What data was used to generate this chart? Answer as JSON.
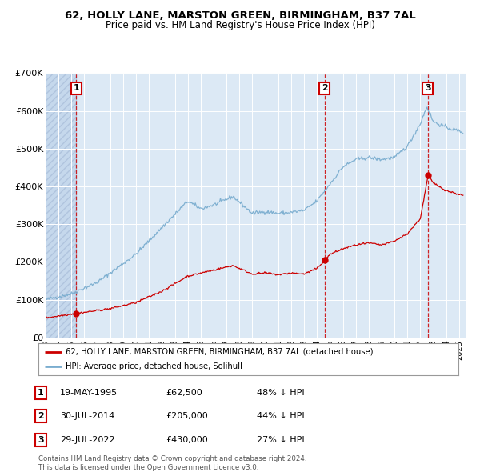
{
  "title": "62, HOLLY LANE, MARSTON GREEN, BIRMINGHAM, B37 7AL",
  "subtitle": "Price paid vs. HM Land Registry's House Price Index (HPI)",
  "hpi_color": "#7aadcf",
  "price_color": "#cc0000",
  "plot_bg": "#dce9f5",
  "grid_color": "#ffffff",
  "sales": [
    {
      "date_num": 1995.38,
      "price": 62500,
      "label": "1"
    },
    {
      "date_num": 2014.58,
      "price": 205000,
      "label": "2"
    },
    {
      "date_num": 2022.58,
      "price": 430000,
      "label": "3"
    }
  ],
  "legend_line1": "62, HOLLY LANE, MARSTON GREEN, BIRMINGHAM, B37 7AL (detached house)",
  "legend_line2": "HPI: Average price, detached house, Solihull",
  "table_rows": [
    {
      "num": "1",
      "date": "19-MAY-1995",
      "price": "£62,500",
      "pct": "48% ↓ HPI"
    },
    {
      "num": "2",
      "date": "30-JUL-2014",
      "price": "£205,000",
      "pct": "44% ↓ HPI"
    },
    {
      "num": "3",
      "date": "29-JUL-2022",
      "price": "£430,000",
      "pct": "27% ↓ HPI"
    }
  ],
  "footer": "Contains HM Land Registry data © Crown copyright and database right 2024.\nThis data is licensed under the Open Government Licence v3.0.",
  "ylim": [
    0,
    700000
  ],
  "xlim": [
    1993.0,
    2025.5
  ],
  "yticks": [
    0,
    100000,
    200000,
    300000,
    400000,
    500000,
    600000,
    700000
  ],
  "ytick_labels": [
    "£0",
    "£100K",
    "£200K",
    "£300K",
    "£400K",
    "£500K",
    "£600K",
    "£700K"
  ],
  "xticks": [
    1993,
    1994,
    1995,
    1996,
    1997,
    1998,
    1999,
    2000,
    2001,
    2002,
    2003,
    2004,
    2005,
    2006,
    2007,
    2008,
    2009,
    2010,
    2011,
    2012,
    2013,
    2014,
    2015,
    2016,
    2017,
    2018,
    2019,
    2020,
    2021,
    2022,
    2023,
    2024,
    2025
  ]
}
